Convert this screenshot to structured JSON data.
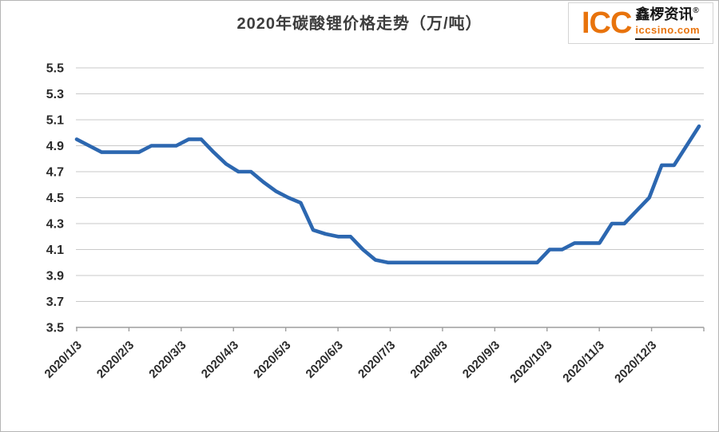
{
  "page": {
    "background": "#ffffff",
    "frame_border_color": "#b5b5b5"
  },
  "header": {
    "title": "2020年碳酸锂价格走势（万/吨）",
    "title_color": "#3d3d3d"
  },
  "logo": {
    "icc_text": "ICC",
    "brand_text": "鑫椤资讯",
    "registered_mark": "®",
    "site_text": "iccsino.com",
    "orange": "#E8730C",
    "dark": "#151515"
  },
  "chart_data": {
    "type": "line",
    "title": "2020年碳酸锂价格走势（万/吨）",
    "unit": "万/吨",
    "ylim": [
      3.5,
      5.5
    ],
    "y_ticks": [
      5.5,
      5.3,
      5.1,
      4.9,
      4.7,
      4.5,
      4.3,
      4.1,
      3.9,
      3.7,
      3.5
    ],
    "x_tick_labels": [
      "2020/1/3",
      "2020/2/3",
      "2020/3/3",
      "2020/4/3",
      "2020/5/3",
      "2020/6/3",
      "2020/7/3",
      "2020/8/3",
      "2020/9/3",
      "2020/10/3",
      "2020/11/3",
      "2020/12/3"
    ],
    "x_label_rotation": -45,
    "grid": "horizontal",
    "legend": "none",
    "gridline_color": "#c9c9c9",
    "axis_color": "#9e9e9e",
    "tick_label_color": "#2b2b2b",
    "series": [
      {
        "name": "碳酸锂价格",
        "color": "#2C67B0",
        "values": [
          4.95,
          4.9,
          4.85,
          4.85,
          4.85,
          4.85,
          4.9,
          4.9,
          4.9,
          4.95,
          4.95,
          4.85,
          4.76,
          4.7,
          4.7,
          4.62,
          4.55,
          4.5,
          4.46,
          4.25,
          4.22,
          4.2,
          4.2,
          4.1,
          4.02,
          4.0,
          4.0,
          4.0,
          4.0,
          4.0,
          4.0,
          4.0,
          4.0,
          4.0,
          4.0,
          4.0,
          4.0,
          4.0,
          4.1,
          4.1,
          4.15,
          4.15,
          4.15,
          4.3,
          4.3,
          4.4,
          4.5,
          4.75,
          4.75,
          4.9,
          5.05
        ]
      }
    ]
  }
}
